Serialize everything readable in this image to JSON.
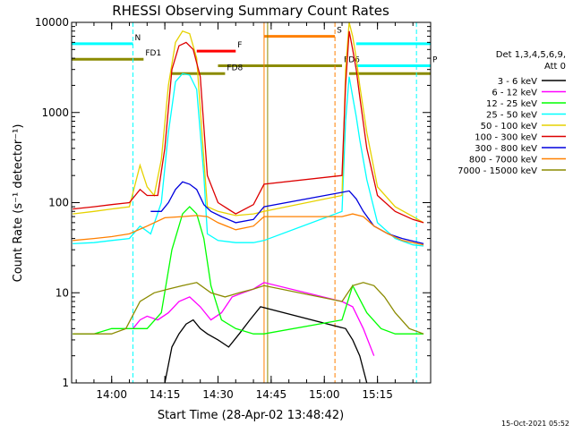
{
  "chart_data": {
    "type": "line",
    "title": "RHESSI Observing Summary Count Rates",
    "xlabel": "Start Time (28-Apr-02 13:48:42)",
    "ylabel": "Count Rate (s⁻¹ detector⁻¹)",
    "yscale": "log",
    "ylim": [
      1,
      10000
    ],
    "xlim": [
      "13:48:42",
      "15:30:00"
    ],
    "x_ticks": [
      "14:00",
      "14:15",
      "14:30",
      "14:45",
      "15:00",
      "15:15"
    ],
    "y_ticks": [
      "1",
      "10",
      "100",
      "1000",
      "10000"
    ],
    "legend": {
      "title_line1": "Det 1,3,4,5,6,9,",
      "title_line2": "Att 0",
      "placement": "right",
      "entries": [
        {
          "label": "3 - 6 keV",
          "color": "#000000"
        },
        {
          "label": "6 - 12 keV",
          "color": "#ff00ff"
        },
        {
          "label": "12 - 25 keV",
          "color": "#00ff00"
        },
        {
          "label": "25 - 50 keV",
          "color": "#00ffff"
        },
        {
          "label": "50 - 100 keV",
          "color": "#e6d200"
        },
        {
          "label": "100 - 300 keV",
          "color": "#dd0000"
        },
        {
          "label": "300 - 800 keV",
          "color": "#0000dd"
        },
        {
          "label": "800 - 7000 keV",
          "color": "#ff8000"
        },
        {
          "label": "7000 - 15000 keV",
          "color": "#8b8b00"
        }
      ]
    },
    "flag_bars": [
      {
        "label": "N",
        "color": "#00ffff",
        "y": 5800,
        "segments": [
          [
            "13:48:42",
            "14:06"
          ],
          [
            "15:09",
            "15:30"
          ]
        ]
      },
      {
        "label": "FD1",
        "color": "#8b8b00",
        "y": 3900,
        "segments": [
          [
            "13:48:42",
            "14:09"
          ]
        ]
      },
      {
        "label": "F",
        "color": "#ff0000",
        "y": 4800,
        "segments": [
          [
            "14:24",
            "14:35"
          ]
        ]
      },
      {
        "label": "S",
        "color": "#ff8000",
        "y": 7000,
        "segments": [
          [
            "14:43",
            "15:03"
          ]
        ]
      },
      {
        "label": "FD6",
        "color": "#8b8b00",
        "y": 3300,
        "segments": [
          [
            "14:30",
            "15:05"
          ]
        ]
      },
      {
        "label": "P",
        "color": "#00ffff",
        "y": 3300,
        "segments": [
          [
            "15:09",
            "15:30"
          ]
        ]
      },
      {
        "label": "FD8",
        "color": "#8b8b00",
        "y": 2700,
        "segments": [
          [
            "14:17",
            "14:32"
          ],
          [
            "15:07",
            "15:30"
          ]
        ]
      }
    ],
    "vertical_markers": [
      {
        "time": "14:06",
        "color": "#00ffff",
        "style": "dashed"
      },
      {
        "time": "14:43",
        "color": "#ff8000",
        "style": "solid"
      },
      {
        "time": "14:44",
        "color": "#8b8b00",
        "style": "solid"
      },
      {
        "time": "15:03",
        "color": "#ff8000",
        "style": "dashed"
      },
      {
        "time": "15:26",
        "color": "#00ffff",
        "style": "dashed"
      }
    ],
    "series": [
      {
        "name": "3 - 6 keV",
        "color": "#000000",
        "x": [
          "14:15",
          "14:17",
          "14:19",
          "14:21",
          "14:23",
          "14:25",
          "14:27",
          "14:30",
          "14:33",
          "14:36",
          "14:39",
          "14:42",
          "15:06",
          "15:08",
          "15:10",
          "15:12"
        ],
        "y": [
          1,
          2.5,
          3.5,
          4.5,
          5,
          4,
          3.5,
          3,
          2.5,
          3.5,
          5,
          7,
          4,
          3,
          2,
          1
        ]
      },
      {
        "name": "6 - 12 keV",
        "color": "#ff00ff",
        "x": [
          "14:06",
          "14:08",
          "14:10",
          "14:13",
          "14:16",
          "14:19",
          "14:22",
          "14:25",
          "14:28",
          "14:31",
          "14:34",
          "14:37",
          "14:40",
          "14:43",
          "15:05",
          "15:08",
          "15:11",
          "15:14"
        ],
        "y": [
          4,
          5,
          5.5,
          5,
          6,
          8,
          9,
          7,
          5,
          6,
          9,
          10,
          11,
          13,
          8,
          7,
          4,
          2
        ]
      },
      {
        "name": "12 - 25 keV",
        "color": "#00ff00",
        "x": [
          "13:49",
          "13:55",
          "14:00",
          "14:05",
          "14:10",
          "14:14",
          "14:17",
          "14:20",
          "14:22",
          "14:24",
          "14:26",
          "14:28",
          "14:31",
          "14:35",
          "14:40",
          "14:43",
          "15:05",
          "15:08",
          "15:12",
          "15:16",
          "15:20",
          "15:24",
          "15:28"
        ],
        "y": [
          3.5,
          3.5,
          4,
          4,
          4,
          6,
          30,
          75,
          90,
          75,
          40,
          12,
          5,
          4,
          3.5,
          3.5,
          5,
          12,
          6,
          4,
          3.5,
          3.5,
          3.5
        ]
      },
      {
        "name": "25 - 50 keV",
        "color": "#00ffff",
        "x": [
          "13:49",
          "13:55",
          "14:00",
          "14:05",
          "14:08",
          "14:11",
          "14:14",
          "14:16",
          "14:18",
          "14:20",
          "14:22",
          "14:24",
          "14:26",
          "14:27",
          "14:30",
          "14:35",
          "14:40",
          "14:43",
          "15:05",
          "15:06",
          "15:07",
          "15:08",
          "15:09",
          "15:10",
          "15:12",
          "15:15",
          "15:20",
          "15:25",
          "15:28"
        ],
        "y": [
          35,
          36,
          38,
          40,
          55,
          45,
          100,
          600,
          2200,
          2700,
          2600,
          1800,
          200,
          45,
          38,
          36,
          36,
          38,
          80,
          800,
          2500,
          1500,
          900,
          500,
          180,
          60,
          40,
          34,
          33
        ]
      },
      {
        "name": "50 - 100 keV",
        "color": "#e6d200",
        "x": [
          "13:49",
          "13:55",
          "14:00",
          "14:05",
          "14:08",
          "14:10",
          "14:12",
          "14:14",
          "14:16",
          "14:18",
          "14:20",
          "14:22",
          "14:24",
          "14:26",
          "14:27",
          "14:30",
          "14:35",
          "14:40",
          "14:43",
          "15:05",
          "15:06",
          "15:07",
          "15:08",
          "15:09",
          "15:10",
          "15:12",
          "15:15",
          "15:20",
          "15:25",
          "15:28"
        ],
        "y": [
          75,
          80,
          85,
          90,
          260,
          150,
          120,
          300,
          2000,
          6000,
          8000,
          7500,
          4000,
          300,
          90,
          80,
          72,
          75,
          80,
          120,
          3000,
          10000,
          7000,
          4000,
          2000,
          600,
          150,
          90,
          70,
          60
        ]
      },
      {
        "name": "100 - 300 keV",
        "color": "#dd0000",
        "x": [
          "13:49",
          "13:55",
          "14:00",
          "14:05",
          "14:08",
          "14:10",
          "14:13",
          "14:15",
          "14:17",
          "14:19",
          "14:21",
          "14:23",
          "14:25",
          "14:27",
          "14:30",
          "14:35",
          "14:40",
          "14:43",
          "15:05",
          "15:06",
          "15:07",
          "15:08",
          "15:09",
          "15:10",
          "15:12",
          "15:15",
          "15:20",
          "15:25",
          "15:28"
        ],
        "y": [
          85,
          90,
          95,
          100,
          140,
          120,
          120,
          400,
          3000,
          5500,
          6000,
          5000,
          2500,
          200,
          100,
          75,
          95,
          160,
          200,
          2000,
          8000,
          5000,
          3000,
          1500,
          400,
          120,
          80,
          65,
          60
        ]
      },
      {
        "name": "300 - 800 keV",
        "color": "#0000dd",
        "x": [
          "14:11",
          "14:14",
          "14:16",
          "14:18",
          "14:20",
          "14:22",
          "14:24",
          "14:26",
          "14:28",
          "14:31",
          "14:35",
          "14:40",
          "14:43",
          "15:05",
          "15:07",
          "15:09",
          "15:11",
          "15:14",
          "15:18",
          "15:22",
          "15:28"
        ],
        "y": [
          80,
          80,
          100,
          140,
          170,
          160,
          140,
          95,
          80,
          70,
          60,
          65,
          90,
          130,
          135,
          110,
          80,
          55,
          45,
          40,
          35
        ]
      },
      {
        "name": "800 - 7000 keV",
        "color": "#ff8000",
        "x": [
          "13:49",
          "13:55",
          "14:00",
          "14:05",
          "14:10",
          "14:15",
          "14:20",
          "14:24",
          "14:27",
          "14:30",
          "14:35",
          "14:40",
          "14:43",
          "15:05",
          "15:08",
          "15:11",
          "15:14",
          "15:18",
          "15:22",
          "15:28"
        ],
        "y": [
          38,
          40,
          42,
          45,
          55,
          68,
          70,
          72,
          70,
          60,
          50,
          55,
          70,
          70,
          75,
          70,
          55,
          45,
          38,
          34
        ]
      },
      {
        "name": "7000 - 15000 keV",
        "color": "#8b8b00",
        "x": [
          "13:49",
          "13:55",
          "14:00",
          "14:04",
          "14:08",
          "14:12",
          "14:16",
          "14:20",
          "14:24",
          "14:28",
          "14:32",
          "14:36",
          "14:40",
          "14:43",
          "15:05",
          "15:08",
          "15:11",
          "15:14",
          "15:17",
          "15:20",
          "15:24",
          "15:28"
        ],
        "y": [
          3.5,
          3.5,
          3.5,
          4,
          8,
          10,
          11,
          12,
          13,
          10,
          9,
          10,
          11,
          12,
          8,
          12,
          13,
          12,
          9,
          6,
          4,
          3.5
        ]
      }
    ],
    "grid": false
  },
  "footer": {
    "timestamp": "15-Oct-2021 05:52"
  }
}
